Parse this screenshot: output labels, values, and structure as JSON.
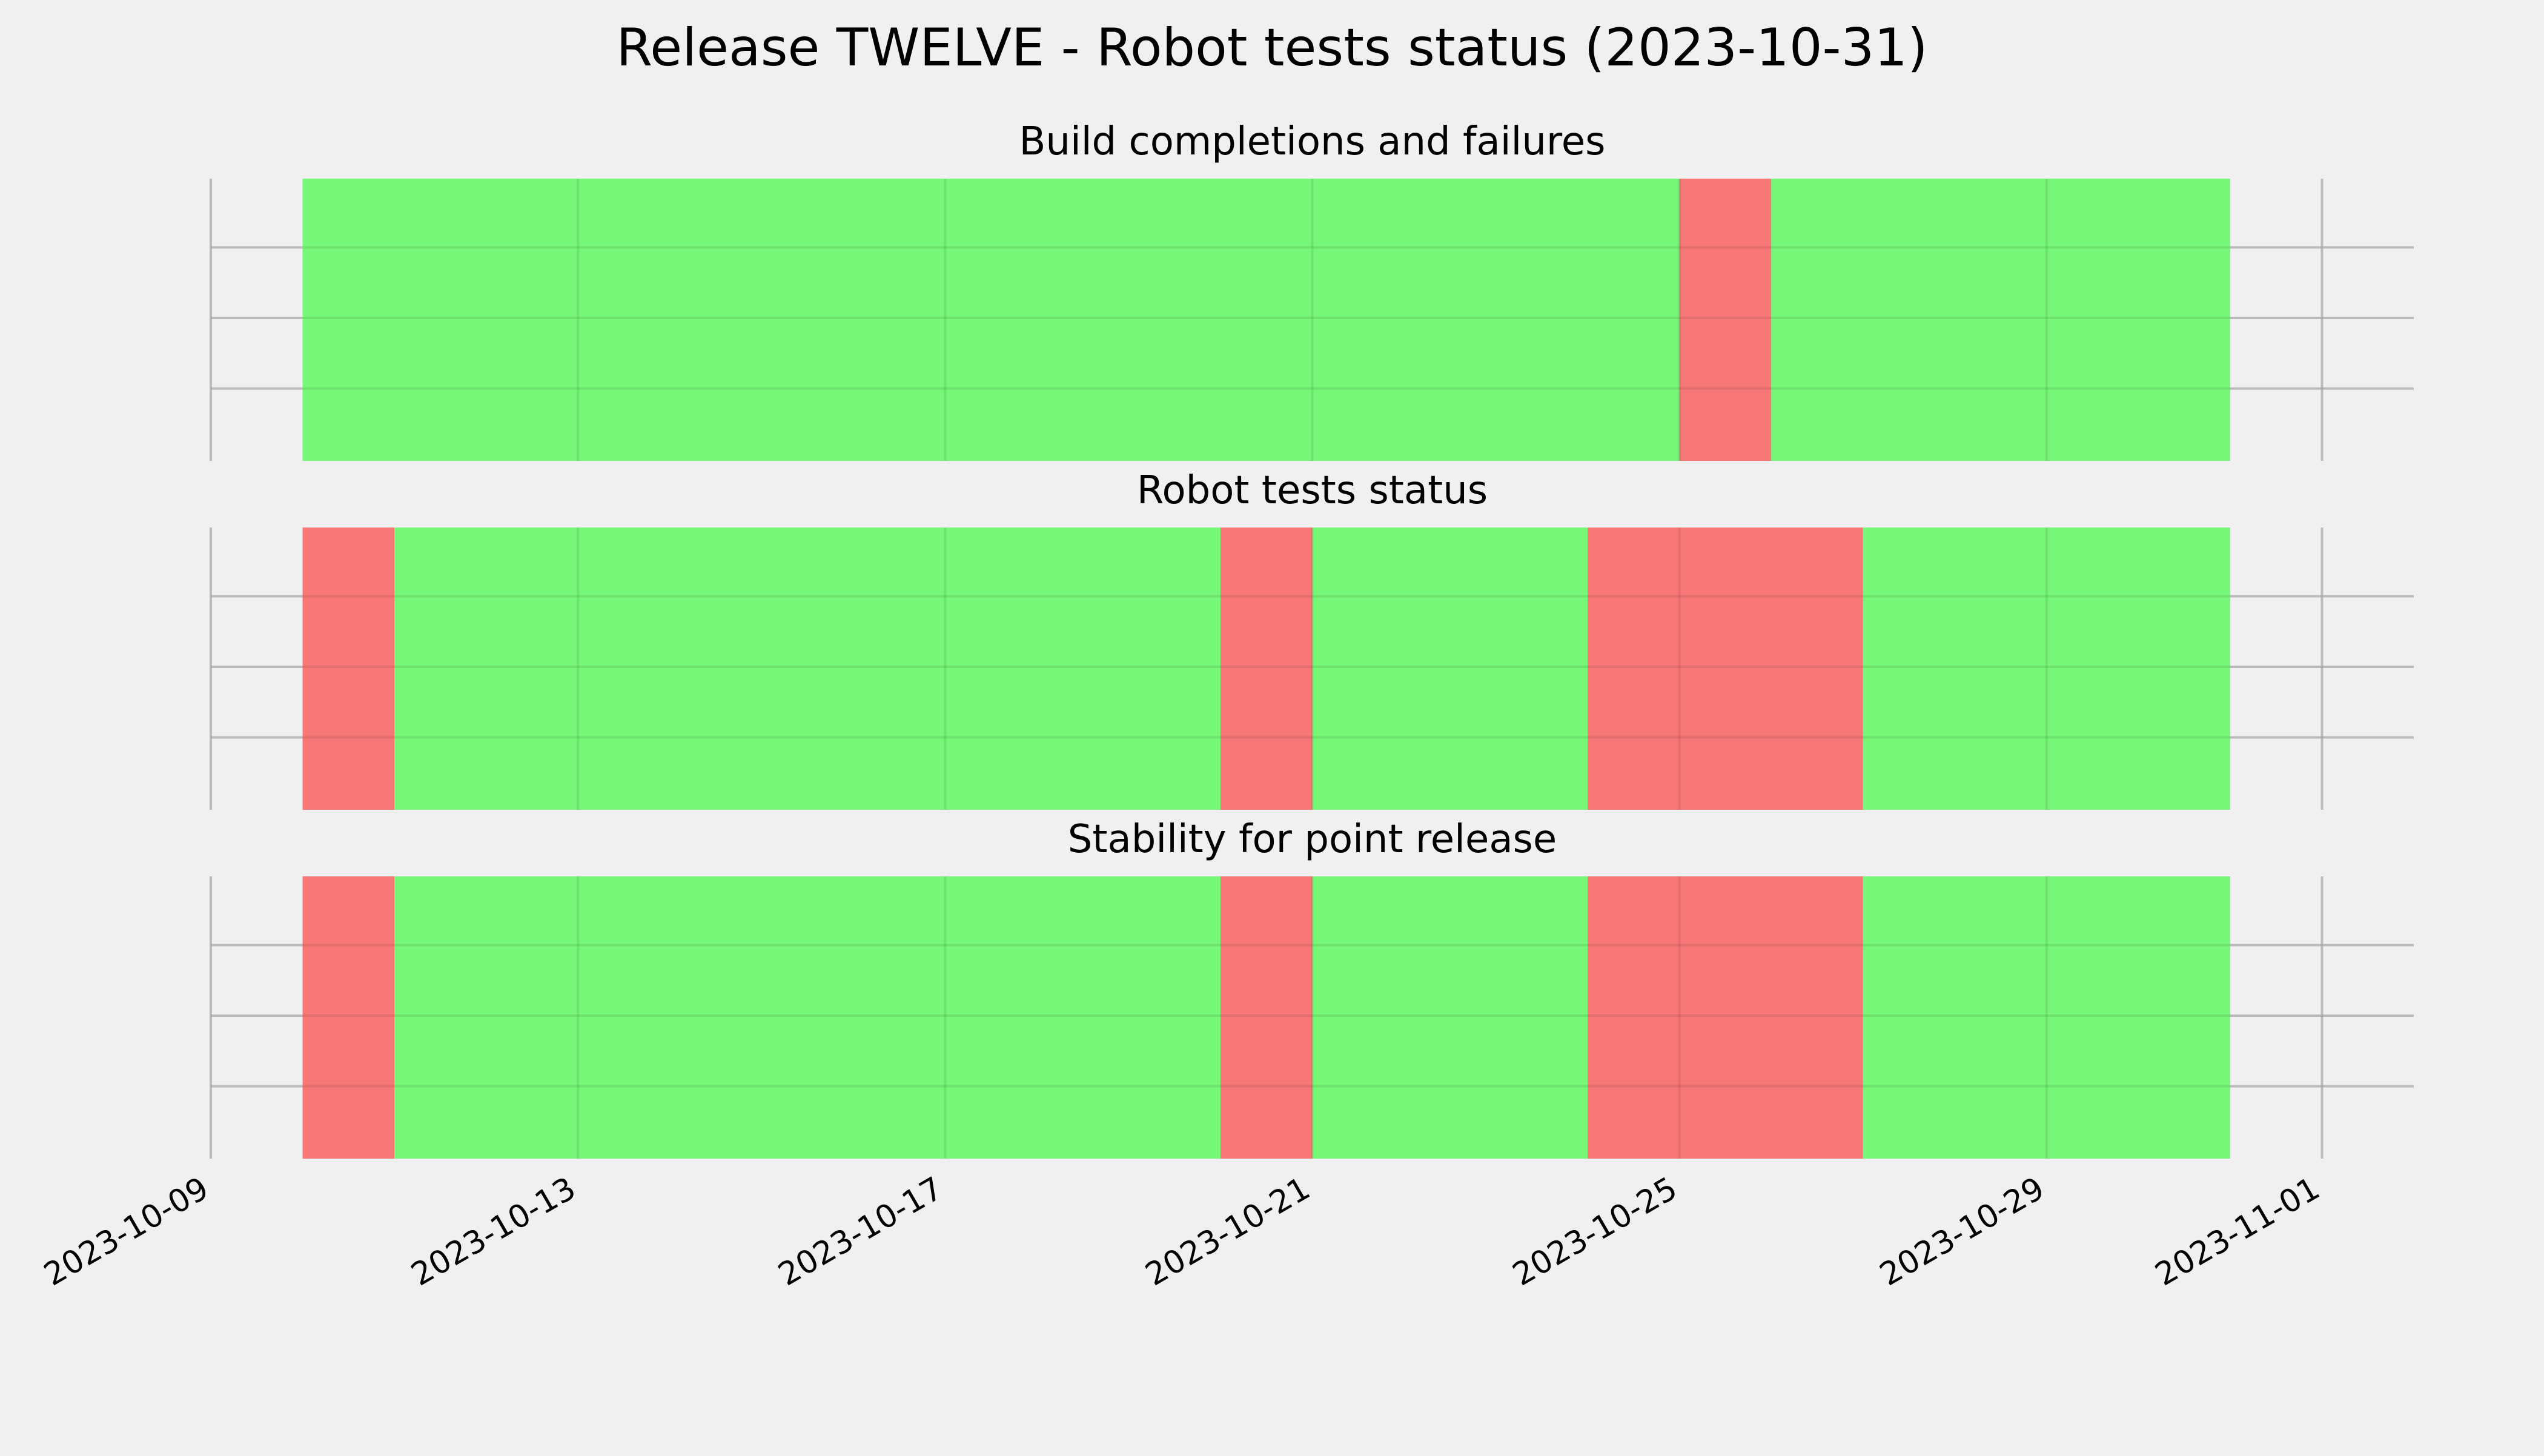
{
  "chart_data": {
    "type": "timeline",
    "title": "Release TWELVE - Robot tests status (2023-10-31)",
    "x_axis": {
      "type": "date",
      "range": [
        "2023-10-09",
        "2023-11-02"
      ],
      "ticks": [
        "2023-10-09",
        "2023-10-13",
        "2023-10-17",
        "2023-10-21",
        "2023-10-25",
        "2023-10-29",
        "2023-11-01"
      ]
    },
    "grid": true,
    "colors": {
      "pass": "#77f777",
      "fail": "#f77777",
      "background": "#f0f0f0",
      "grid": "#cbcbcb"
    },
    "panels": [
      {
        "title": "Build completions and failures",
        "segments": [
          {
            "start": "2023-10-10",
            "end": "2023-10-25",
            "status": "pass"
          },
          {
            "start": "2023-10-25",
            "end": "2023-10-26",
            "status": "fail"
          },
          {
            "start": "2023-10-26",
            "end": "2023-10-31",
            "status": "pass"
          }
        ]
      },
      {
        "title": "Robot tests status",
        "segments": [
          {
            "start": "2023-10-10",
            "end": "2023-10-11",
            "status": "fail"
          },
          {
            "start": "2023-10-11",
            "end": "2023-10-20",
            "status": "pass"
          },
          {
            "start": "2023-10-20",
            "end": "2023-10-21",
            "status": "fail"
          },
          {
            "start": "2023-10-21",
            "end": "2023-10-24",
            "status": "pass"
          },
          {
            "start": "2023-10-24",
            "end": "2023-10-27",
            "status": "fail"
          },
          {
            "start": "2023-10-27",
            "end": "2023-10-31",
            "status": "pass"
          }
        ]
      },
      {
        "title": "Stability for point release",
        "segments": [
          {
            "start": "2023-10-10",
            "end": "2023-10-11",
            "status": "fail"
          },
          {
            "start": "2023-10-11",
            "end": "2023-10-20",
            "status": "pass"
          },
          {
            "start": "2023-10-20",
            "end": "2023-10-21",
            "status": "fail"
          },
          {
            "start": "2023-10-21",
            "end": "2023-10-24",
            "status": "pass"
          },
          {
            "start": "2023-10-24",
            "end": "2023-10-27",
            "status": "fail"
          },
          {
            "start": "2023-10-27",
            "end": "2023-10-31",
            "status": "pass"
          }
        ]
      }
    ]
  }
}
